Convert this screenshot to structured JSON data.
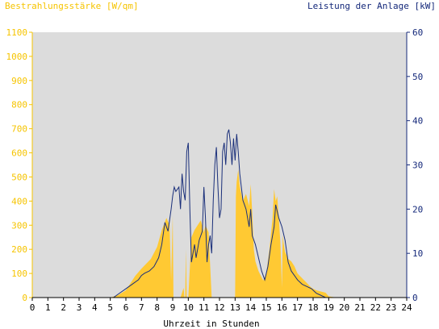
{
  "colors": {
    "irradiance": "#ffc933",
    "power": "#1a2f7a",
    "plot_background": "#dcdcdc",
    "left_axis_text": "#f6c400",
    "right_axis_text": "#14287a"
  },
  "chart_data": {
    "type": "area",
    "left_axis": {
      "label": "Bestrahlungsstärke [W/qm]",
      "range": [
        0,
        1100
      ],
      "ticks": [
        0,
        100,
        200,
        300,
        400,
        500,
        600,
        700,
        800,
        900,
        1000,
        1100
      ]
    },
    "right_axis": {
      "label": "Leistung der Anlage [kW]",
      "range": [
        0,
        60
      ],
      "ticks": [
        0,
        10,
        20,
        30,
        40,
        50,
        60
      ]
    },
    "x_axis": {
      "label": "Uhrzeit in Stunden",
      "range": [
        0,
        24
      ],
      "ticks": [
        0,
        1,
        2,
        3,
        4,
        5,
        6,
        7,
        8,
        9,
        10,
        11,
        12,
        13,
        14,
        15,
        16,
        17,
        18,
        19,
        20,
        21,
        22,
        23,
        24
      ]
    },
    "grid": false,
    "series": [
      {
        "name": "Bestrahlungsstärke [W/qm]",
        "axis": "left",
        "style": "area",
        "x": [
          0,
          5.0,
          5.5,
          6.0,
          6.3,
          6.6,
          7.0,
          7.3,
          7.6,
          8.0,
          8.3,
          8.6,
          8.8,
          8.9,
          9.0,
          9.05,
          9.1,
          9.5,
          9.7,
          9.75,
          9.8,
          9.85,
          9.9,
          10.0,
          10.2,
          10.4,
          10.6,
          10.8,
          11.0,
          11.1,
          11.3,
          11.5,
          11.6,
          12.0,
          12.5,
          13.0,
          13.05,
          13.1,
          13.2,
          13.3,
          13.5,
          13.7,
          13.9,
          14.0,
          14.1,
          14.2,
          14.3,
          14.5,
          14.8,
          15.0,
          15.2,
          15.4,
          15.5,
          15.6,
          15.7,
          15.8,
          15.9,
          16.0,
          16.05,
          16.1,
          16.2,
          16.4,
          16.6,
          16.8,
          17.0,
          17.3,
          17.6,
          17.9,
          18.2,
          18.5,
          18.8,
          19.0,
          19.5,
          24
        ],
        "y": [
          0,
          0,
          10,
          30,
          60,
          90,
          120,
          140,
          160,
          210,
          280,
          330,
          300,
          70,
          340,
          0,
          0,
          0,
          40,
          0,
          0,
          200,
          0,
          0,
          250,
          280,
          300,
          320,
          270,
          300,
          270,
          0,
          0,
          0,
          0,
          0,
          420,
          480,
          530,
          460,
          400,
          430,
          380,
          470,
          350,
          200,
          150,
          110,
          70,
          100,
          200,
          330,
          450,
          400,
          420,
          330,
          230,
          40,
          260,
          230,
          190,
          160,
          150,
          130,
          100,
          80,
          60,
          40,
          30,
          25,
          20,
          5,
          0,
          0
        ]
      },
      {
        "name": "Leistung der Anlage [kW]",
        "axis": "right",
        "style": "line",
        "x": [
          0,
          5.2,
          5.6,
          6.0,
          6.4,
          6.8,
          7.0,
          7.2,
          7.5,
          7.8,
          8.1,
          8.3,
          8.5,
          8.7,
          8.9,
          9.0,
          9.1,
          9.2,
          9.4,
          9.5,
          9.6,
          9.7,
          9.8,
          9.9,
          10.0,
          10.1,
          10.2,
          10.3,
          10.4,
          10.5,
          10.7,
          10.9,
          11.0,
          11.1,
          11.2,
          11.3,
          11.4,
          11.5,
          11.6,
          11.7,
          11.8,
          11.9,
          12.0,
          12.1,
          12.2,
          12.3,
          12.4,
          12.5,
          12.6,
          12.7,
          12.8,
          12.9,
          13.0,
          13.1,
          13.2,
          13.3,
          13.4,
          13.5,
          13.7,
          13.9,
          14.0,
          14.1,
          14.3,
          14.5,
          14.7,
          14.9,
          15.1,
          15.3,
          15.5,
          15.6,
          15.8,
          16.0,
          16.2,
          16.4,
          16.6,
          16.8,
          17.0,
          17.3,
          17.6,
          17.9,
          18.2,
          18.5,
          18.8,
          19.0,
          19.3,
          24
        ],
        "y": [
          0,
          0,
          1,
          2,
          3,
          4,
          5,
          5.5,
          6,
          7,
          9,
          12,
          17,
          15,
          20,
          23,
          25,
          24,
          25,
          20,
          28,
          24,
          22,
          33,
          35,
          20,
          8,
          10,
          12,
          9,
          13,
          15,
          25,
          18,
          8,
          12,
          14,
          10,
          22,
          30,
          34,
          25,
          18,
          20,
          33,
          35,
          30,
          37,
          38,
          35,
          30,
          36,
          31,
          37,
          33,
          28,
          25,
          22,
          20,
          16,
          20,
          14,
          12,
          9,
          6,
          4,
          7,
          12,
          16,
          21,
          18,
          16,
          13,
          8,
          6,
          5,
          4,
          3,
          2.5,
          2,
          1,
          0.5,
          0,
          0,
          0,
          0
        ]
      }
    ]
  }
}
